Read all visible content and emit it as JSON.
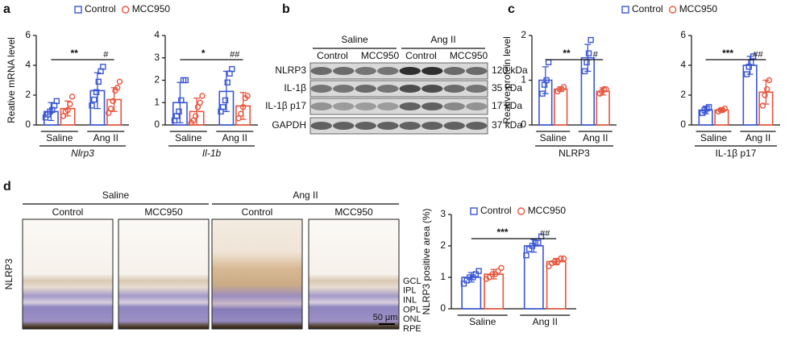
{
  "figure": {
    "panel_letters": [
      "a",
      "b",
      "c",
      "d"
    ],
    "blot": {
      "groups": [
        "Saline",
        "Ang II"
      ],
      "lanes": [
        "Control",
        "MCC950",
        "Control",
        "MCC950"
      ],
      "proteins": [
        "NLRP3",
        "IL-1β",
        "IL-1β p17",
        "GAPDH"
      ],
      "sizes": [
        "120 kDa",
        "35 kDa",
        "17 kDa",
        "37 kDa"
      ]
    },
    "histology": {
      "groups": [
        "Saline",
        "Ang II"
      ],
      "columns": [
        "Control",
        "MCC950",
        "Control",
        "MCC950"
      ],
      "stain": "NLRP3",
      "layers": [
        "GCL",
        "IPL",
        "INL",
        "OPL",
        "ONL",
        "RPE"
      ],
      "scale_bar": "50 μm"
    }
  },
  "chart_data": [
    {
      "type": "bar",
      "xlabel": "Nlrp3",
      "ylabel": "Reative mRNA level",
      "categories": [
        "Saline",
        "Ang II"
      ],
      "ylim": [
        0,
        6
      ],
      "yticks": [
        0,
        2,
        4,
        6
      ],
      "significance": [
        "**",
        "#"
      ],
      "series": [
        {
          "name": "Control",
          "color": "#3a56d4",
          "marker": "square",
          "values": [
            0.9,
            2.3
          ],
          "errors": [
            0.6,
            1.2
          ],
          "points": [
            [
              0.5,
              0.7,
              0.9,
              1.0,
              1.3,
              1.6
            ],
            [
              1.3,
              1.7,
              2.2,
              2.9,
              3.6,
              3.9
            ]
          ]
        },
        {
          "name": "MCC950",
          "color": "#e8553d",
          "marker": "circle",
          "values": [
            1.1,
            1.7
          ],
          "errors": [
            0.5,
            0.8
          ],
          "points": [
            [
              0.6,
              0.9,
              1.0,
              1.4,
              1.9
            ],
            [
              0.8,
              1.1,
              1.6,
              2.3,
              2.5,
              2.9
            ]
          ]
        }
      ]
    },
    {
      "type": "bar",
      "xlabel": "Il-1b",
      "categories": [
        "Saline",
        "Ang II"
      ],
      "ylim": [
        0,
        4
      ],
      "yticks": [
        0,
        1,
        2,
        3,
        4
      ],
      "significance": [
        "*",
        "##"
      ],
      "series": [
        {
          "name": "Control",
          "color": "#3a56d4",
          "marker": "square",
          "values": [
            1.0,
            1.5
          ],
          "errors": [
            0.9,
            0.9
          ],
          "points": [
            [
              0.2,
              0.4,
              0.6,
              1.1,
              2.0,
              2.0
            ],
            [
              0.6,
              0.8,
              1.1,
              1.9,
              2.3,
              2.5
            ]
          ]
        },
        {
          "name": "MCC950",
          "color": "#e8553d",
          "marker": "circle",
          "values": [
            0.6,
            0.85
          ],
          "errors": [
            0.6,
            0.6
          ],
          "points": [
            [
              0.1,
              0.2,
              0.4,
              0.8,
              1.0,
              1.3
            ],
            [
              0.3,
              0.5,
              0.8,
              1.2,
              1.3
            ]
          ]
        }
      ]
    },
    {
      "type": "bar",
      "xlabel": "NLRP3",
      "ylabel": "Reative protein level",
      "categories": [
        "Saline",
        "Ang II"
      ],
      "ylim": [
        0,
        2
      ],
      "yticks": [
        0,
        1,
        2
      ],
      "significance": [
        "**",
        "#"
      ],
      "series": [
        {
          "name": "Control",
          "color": "#3a56d4",
          "marker": "square",
          "values": [
            1.0,
            1.5
          ],
          "errors": [
            0.3,
            0.3
          ],
          "points": [
            [
              0.7,
              0.9,
              1.0,
              1.4
            ],
            [
              1.2,
              1.4,
              1.6,
              1.9
            ]
          ]
        },
        {
          "name": "MCC950",
          "color": "#e8553d",
          "marker": "circle",
          "values": [
            0.8,
            0.75
          ],
          "errors": [
            0.05,
            0.08
          ],
          "points": [
            [
              0.75,
              0.8,
              0.8,
              0.85
            ],
            [
              0.7,
              0.75,
              0.8,
              0.8
            ]
          ]
        }
      ]
    },
    {
      "type": "bar",
      "xlabel": "IL-1β p17",
      "categories": [
        "Saline",
        "Ang II"
      ],
      "ylim": [
        0,
        6
      ],
      "yticks": [
        0,
        2,
        4,
        6
      ],
      "significance": [
        "***",
        "##"
      ],
      "series": [
        {
          "name": "Control",
          "color": "#3a56d4",
          "marker": "square",
          "values": [
            1.0,
            4.0
          ],
          "errors": [
            0.25,
            0.6
          ],
          "points": [
            [
              0.8,
              1.0,
              1.1,
              1.2
            ],
            [
              3.4,
              3.9,
              4.2,
              4.6
            ]
          ]
        },
        {
          "name": "MCC950",
          "color": "#e8553d",
          "marker": "circle",
          "values": [
            1.0,
            2.2
          ],
          "errors": [
            0.1,
            0.8
          ],
          "points": [
            [
              0.9,
              1.0,
              1.0,
              1.1
            ],
            [
              1.3,
              2.0,
              2.4,
              3.0
            ]
          ]
        }
      ]
    },
    {
      "type": "bar",
      "ylabel": "NLRP3 positive area (%)",
      "categories": [
        "Saline",
        "Ang II"
      ],
      "ylim": [
        0,
        3
      ],
      "yticks": [
        0,
        1,
        2,
        3
      ],
      "significance": [
        "***",
        "##"
      ],
      "series": [
        {
          "name": "Control",
          "color": "#3a56d4",
          "marker": "square",
          "values": [
            1.0,
            2.0
          ],
          "errors": [
            0.15,
            0.2
          ],
          "points": [
            [
              0.8,
              0.9,
              1.0,
              1.0,
              1.1,
              1.2
            ],
            [
              1.7,
              1.9,
              2.0,
              2.1,
              2.1,
              2.3
            ]
          ]
        },
        {
          "name": "MCC950",
          "color": "#e8553d",
          "marker": "circle",
          "values": [
            1.1,
            1.5
          ],
          "errors": [
            0.15,
            0.1
          ],
          "points": [
            [
              0.95,
              1.0,
              1.1,
              1.1,
              1.2,
              1.3
            ],
            [
              1.35,
              1.45,
              1.5,
              1.5,
              1.6,
              1.6
            ]
          ]
        }
      ]
    }
  ]
}
